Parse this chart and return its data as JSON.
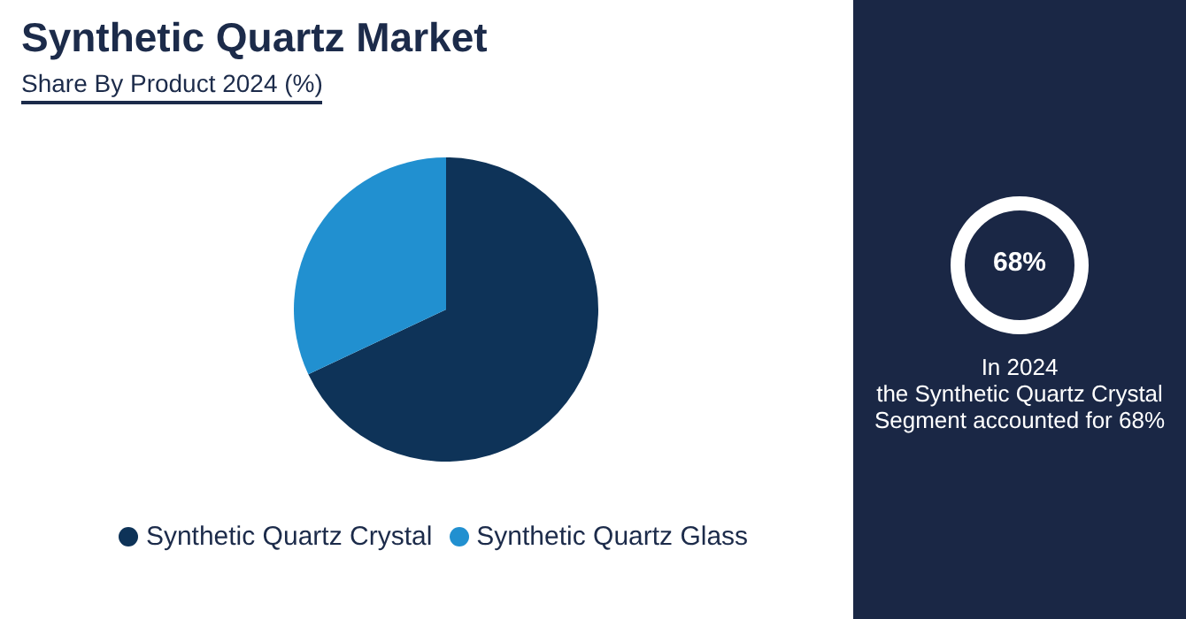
{
  "chart_data": {
    "type": "pie",
    "title": "Synthetic Quartz Market",
    "subtitle": "Share By Product 2024 (%)",
    "categories": [
      "Synthetic Quartz Crystal",
      "Synthetic Quartz Glass"
    ],
    "values": [
      68,
      32
    ],
    "colors": [
      "#0e3358",
      "#2190d0"
    ],
    "legend": "bottom",
    "annotations": [
      "68%",
      "In 2024",
      "the Synthetic Quartz Crystal Segment accounted for 68%"
    ]
  }
}
